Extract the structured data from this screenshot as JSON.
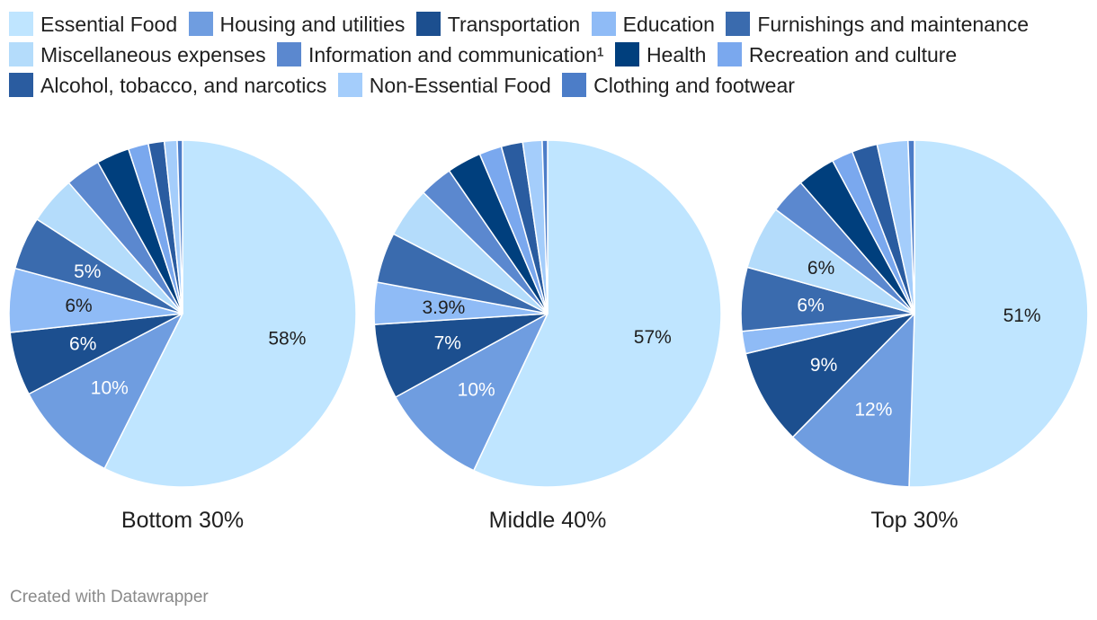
{
  "chart_data": {
    "type": "pie",
    "legend": {
      "position": "top",
      "entries": [
        {
          "name": "Essential Food",
          "color": "#bfe5ff"
        },
        {
          "name": "Housing and utilities",
          "color": "#6f9de0"
        },
        {
          "name": "Transportation",
          "color": "#1c4f8f"
        },
        {
          "name": "Education",
          "color": "#8fbbf6"
        },
        {
          "name": "Furnishings and maintenance",
          "color": "#3a6bae"
        },
        {
          "name": "Miscellaneous expenses",
          "color": "#b4dcfb"
        },
        {
          "name": "Information and communication¹",
          "color": "#5b88cf"
        },
        {
          "name": "Health",
          "color": "#003f7d"
        },
        {
          "name": "Recreation and culture",
          "color": "#7aa8ee"
        },
        {
          "name": "Alcohol, tobacco, and narcotics",
          "color": "#2a5ca0"
        },
        {
          "name": "Non-Essential Food",
          "color": "#a4cdfb"
        },
        {
          "name": "Clothing and footwear",
          "color": "#4c7dc8"
        }
      ]
    },
    "pies": [
      {
        "title": "Bottom 30%",
        "order": [
          "Essential Food",
          "Housing and utilities",
          "Transportation",
          "Education",
          "Furnishings and maintenance",
          "Miscellaneous expenses",
          "Information and communication¹",
          "Health",
          "Recreation and culture",
          "Alcohol, tobacco, and narcotics",
          "Non-Essential Food",
          "Clothing and footwear"
        ],
        "values": [
          58,
          10,
          6,
          6,
          5,
          4.5,
          3.3,
          3.1,
          1.9,
          1.5,
          1.2,
          0.5
        ],
        "labels": [
          "58%",
          "10%",
          "6%",
          "6%",
          "5%",
          "",
          "",
          "",
          "",
          "",
          "",
          ""
        ]
      },
      {
        "title": "Middle 40%",
        "order": [
          "Essential Food",
          "Housing and utilities",
          "Transportation",
          "Education",
          "Furnishings and maintenance",
          "Miscellaneous expenses",
          "Information and communication¹",
          "Health",
          "Recreation and culture",
          "Alcohol, tobacco, and narcotics",
          "Non-Essential Food",
          "Clothing and footwear"
        ],
        "values": [
          57,
          10,
          7,
          3.9,
          4.7,
          4.7,
          3.1,
          3.2,
          2.1,
          2.0,
          1.8,
          0.5
        ],
        "labels": [
          "57%",
          "10%",
          "7%",
          "3.9%",
          "",
          "",
          "",
          "",
          "",
          "",
          "",
          ""
        ]
      },
      {
        "title": "Top 30%",
        "order": [
          "Essential Food",
          "Housing and utilities",
          "Transportation",
          "Education",
          "Furnishings and maintenance",
          "Miscellaneous expenses",
          "Information and communication¹",
          "Health",
          "Recreation and culture",
          "Alcohol, tobacco, and narcotics",
          "Non-Essential Food",
          "Clothing and footwear"
        ],
        "values": [
          51,
          12,
          9,
          2.1,
          6,
          6,
          3.4,
          3.6,
          2.0,
          2.4,
          2.9,
          0.6
        ],
        "labels": [
          "51%",
          "12%",
          "9%",
          "",
          "6%",
          "6%",
          "",
          "",
          "",
          "",
          "",
          ""
        ]
      }
    ]
  },
  "footer": {
    "credit": "Created with Datawrapper"
  }
}
